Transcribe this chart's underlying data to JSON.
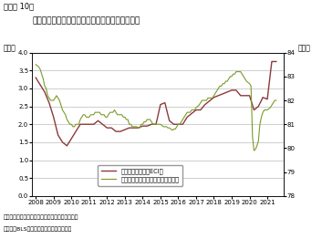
{
  "title": "雇用コスト指数およびプライムエイジ労働参加率",
  "super_title": "（図表 10）",
  "ylabel_left": "（％）",
  "ylabel_right": "（％）",
  "ylim_left": [
    0.0,
    4.0
  ],
  "ylim_right": [
    78,
    84
  ],
  "yticks_left": [
    0.0,
    0.5,
    1.0,
    1.5,
    2.0,
    2.5,
    3.0,
    3.5,
    4.0
  ],
  "yticks_right": [
    78,
    79,
    80,
    81,
    82,
    83,
    84
  ],
  "note1": "（注）雇用コスト指数（四半期）は前年同期比。",
  "note2": "（資料）BLSよりニッセイ基瞐研究所作成",
  "legend1": "雇用コスト指数（ECI）",
  "legend2": "プライムエイジ労働参加率（右軸）",
  "color_eci": "#8B3A3A",
  "color_prime": "#7B9B2A",
  "eci_x": [
    2008.0,
    2008.25,
    2008.5,
    2008.75,
    2009.0,
    2009.25,
    2009.5,
    2009.75,
    2010.0,
    2010.25,
    2010.5,
    2010.75,
    2011.0,
    2011.25,
    2011.5,
    2011.75,
    2012.0,
    2012.25,
    2012.5,
    2012.75,
    2013.0,
    2013.25,
    2013.5,
    2013.75,
    2014.0,
    2014.25,
    2014.5,
    2014.75,
    2015.0,
    2015.25,
    2015.5,
    2015.75,
    2016.0,
    2016.25,
    2016.5,
    2016.75,
    2017.0,
    2017.25,
    2017.5,
    2017.75,
    2018.0,
    2018.25,
    2018.5,
    2018.75,
    2019.0,
    2019.25,
    2019.5,
    2019.75,
    2020.0,
    2020.25,
    2020.5,
    2020.75,
    2021.0,
    2021.25,
    2021.5
  ],
  "eci_y": [
    3.3,
    3.1,
    2.9,
    2.6,
    2.2,
    1.7,
    1.5,
    1.4,
    1.6,
    1.8,
    2.0,
    2.0,
    2.0,
    2.0,
    2.1,
    2.0,
    1.9,
    1.9,
    1.8,
    1.8,
    1.85,
    1.9,
    1.9,
    1.9,
    1.95,
    1.95,
    2.0,
    2.0,
    2.55,
    2.6,
    2.1,
    2.0,
    2.0,
    2.0,
    2.2,
    2.3,
    2.4,
    2.4,
    2.55,
    2.65,
    2.75,
    2.8,
    2.85,
    2.9,
    2.95,
    2.95,
    2.8,
    2.8,
    2.8,
    2.4,
    2.5,
    2.75,
    2.7,
    3.75,
    3.75
  ],
  "prime_x": [
    2008.0,
    2008.083,
    2008.167,
    2008.25,
    2008.333,
    2008.417,
    2008.5,
    2008.583,
    2008.667,
    2008.75,
    2008.833,
    2008.917,
    2009.0,
    2009.083,
    2009.167,
    2009.25,
    2009.333,
    2009.417,
    2009.5,
    2009.583,
    2009.667,
    2009.75,
    2009.833,
    2009.917,
    2010.0,
    2010.083,
    2010.167,
    2010.25,
    2010.333,
    2010.417,
    2010.5,
    2010.583,
    2010.667,
    2010.75,
    2010.833,
    2010.917,
    2011.0,
    2011.083,
    2011.167,
    2011.25,
    2011.333,
    2011.417,
    2011.5,
    2011.583,
    2011.667,
    2011.75,
    2011.833,
    2011.917,
    2012.0,
    2012.083,
    2012.167,
    2012.25,
    2012.333,
    2012.417,
    2012.5,
    2012.583,
    2012.667,
    2012.75,
    2012.833,
    2012.917,
    2013.0,
    2013.083,
    2013.167,
    2013.25,
    2013.333,
    2013.417,
    2013.5,
    2013.583,
    2013.667,
    2013.75,
    2013.833,
    2013.917,
    2014.0,
    2014.083,
    2014.167,
    2014.25,
    2014.333,
    2014.417,
    2014.5,
    2014.583,
    2014.667,
    2014.75,
    2014.833,
    2014.917,
    2015.0,
    2015.083,
    2015.167,
    2015.25,
    2015.333,
    2015.417,
    2015.5,
    2015.583,
    2015.667,
    2015.75,
    2015.833,
    2015.917,
    2016.0,
    2016.083,
    2016.167,
    2016.25,
    2016.333,
    2016.417,
    2016.5,
    2016.583,
    2016.667,
    2016.75,
    2016.833,
    2016.917,
    2017.0,
    2017.083,
    2017.167,
    2017.25,
    2017.333,
    2017.417,
    2017.5,
    2017.583,
    2017.667,
    2017.75,
    2017.833,
    2017.917,
    2018.0,
    2018.083,
    2018.167,
    2018.25,
    2018.333,
    2018.417,
    2018.5,
    2018.583,
    2018.667,
    2018.75,
    2018.833,
    2018.917,
    2019.0,
    2019.083,
    2019.167,
    2019.25,
    2019.333,
    2019.417,
    2019.5,
    2019.583,
    2019.667,
    2019.75,
    2019.833,
    2019.917,
    2020.0,
    2020.083,
    2020.167,
    2020.25,
    2020.333,
    2020.417,
    2020.5,
    2020.583,
    2020.667,
    2020.75,
    2020.833,
    2020.917,
    2021.0,
    2021.083,
    2021.167,
    2021.25,
    2021.333,
    2021.417,
    2021.5
  ],
  "prime_y": [
    83.5,
    83.45,
    83.4,
    83.3,
    83.1,
    82.9,
    82.6,
    82.5,
    82.2,
    82.1,
    82.0,
    82.0,
    82.0,
    82.1,
    82.2,
    82.1,
    82.0,
    81.8,
    81.6,
    81.5,
    81.4,
    81.2,
    81.1,
    81.0,
    81.0,
    80.9,
    80.9,
    81.0,
    81.0,
    81.0,
    81.2,
    81.3,
    81.4,
    81.4,
    81.3,
    81.3,
    81.3,
    81.4,
    81.4,
    81.4,
    81.5,
    81.5,
    81.5,
    81.5,
    81.4,
    81.4,
    81.4,
    81.3,
    81.3,
    81.4,
    81.5,
    81.5,
    81.5,
    81.6,
    81.5,
    81.4,
    81.4,
    81.4,
    81.4,
    81.3,
    81.3,
    81.2,
    81.2,
    81.0,
    81.0,
    80.9,
    80.9,
    80.9,
    80.9,
    80.85,
    80.85,
    81.0,
    81.0,
    81.1,
    81.1,
    81.2,
    81.2,
    81.2,
    81.1,
    81.0,
    81.0,
    81.0,
    81.0,
    81.0,
    81.0,
    80.95,
    80.9,
    80.9,
    80.9,
    80.85,
    80.85,
    80.8,
    80.75,
    80.8,
    80.8,
    80.9,
    81.0,
    81.0,
    81.1,
    81.2,
    81.3,
    81.4,
    81.5,
    81.5,
    81.5,
    81.6,
    81.6,
    81.6,
    81.7,
    81.75,
    81.8,
    81.9,
    82.0,
    82.0,
    82.0,
    82.0,
    82.1,
    82.1,
    82.1,
    82.1,
    82.2,
    82.3,
    82.4,
    82.5,
    82.6,
    82.6,
    82.7,
    82.7,
    82.8,
    82.8,
    82.9,
    83.0,
    83.0,
    83.1,
    83.1,
    83.2,
    83.2,
    83.2,
    83.2,
    83.1,
    83.0,
    82.9,
    82.8,
    82.75,
    82.7,
    82.6,
    80.5,
    79.9,
    79.95,
    80.1,
    80.3,
    81.0,
    81.3,
    81.5,
    81.6,
    81.6,
    81.6,
    81.65,
    81.7,
    81.8,
    81.9,
    82.0,
    82.0
  ],
  "xticks": [
    2008,
    2009,
    2010,
    2011,
    2012,
    2013,
    2014,
    2015,
    2016,
    2017,
    2018,
    2019,
    2020,
    2021
  ],
  "xlim": [
    2007.8,
    2021.9
  ]
}
